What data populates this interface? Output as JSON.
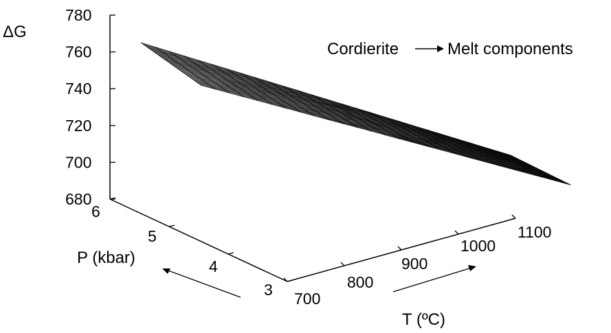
{
  "chart_data": {
    "type": "surface",
    "title": "",
    "annotation": "Cordierite —▶ Melt components",
    "annotation_text": "Cordierite",
    "annotation_text2": "Melt components",
    "zlabel": "ΔG",
    "xlabel": "T (ºC)",
    "ylabel": "P (kbar)",
    "z_ticks": [
      "780",
      "760",
      "740",
      "720",
      "700",
      "680"
    ],
    "x_ticks": [
      "700",
      "800",
      "900",
      "1000",
      "1100"
    ],
    "y_ticks": [
      "3",
      "4",
      "5",
      "6"
    ],
    "zlim": [
      680,
      780
    ],
    "xlim": [
      700,
      1100
    ],
    "ylim": [
      3,
      6
    ],
    "surface": {
      "description_free": true,
      "T": [
        700,
        1100
      ],
      "P": [
        3,
        6
      ],
      "dG_at_T700_P6": 765,
      "dG_at_T1100_P6": 685,
      "dG_at_T700_P3": 753,
      "dG_at_T1100_P3": 680
    }
  }
}
